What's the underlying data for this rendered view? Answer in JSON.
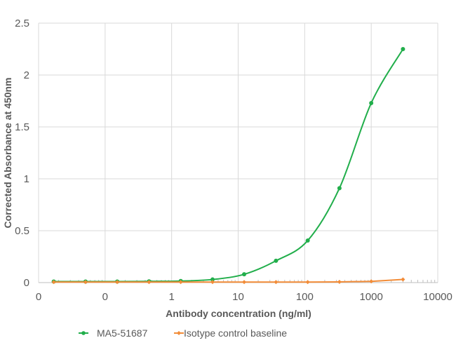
{
  "chart_data": {
    "type": "line",
    "title": "",
    "xlabel": "Antibody concentration (ng/ml)",
    "ylabel": "Corrected Absorbance at 450nm",
    "xscale": "log",
    "xlim": [
      0.01,
      10000
    ],
    "ylim": [
      0,
      2.5
    ],
    "x_tick_labels": [
      "0",
      "0",
      "1",
      "10",
      "100",
      "1000",
      "10000"
    ],
    "y_tick_labels": [
      "0",
      "0.5",
      "1",
      "1.5",
      "2",
      "2.5"
    ],
    "grid": true,
    "legend_position": "bottom",
    "x": [
      0.0169,
      0.0508,
      0.152,
      0.457,
      1.37,
      4.12,
      12.3,
      37.0,
      111,
      333,
      1000,
      3000
    ],
    "series": [
      {
        "name": "MA5-51687",
        "color": "#21AE4B",
        "marker": "circle",
        "smooth": true,
        "values": [
          0.01,
          0.01,
          0.01,
          0.012,
          0.015,
          0.03,
          0.08,
          0.21,
          0.405,
          0.91,
          1.73,
          2.25
        ]
      },
      {
        "name": "Isotype control baseline",
        "color": "#F28C38",
        "marker": "diamond",
        "smooth": false,
        "values": [
          0.005,
          0.005,
          0.005,
          0.005,
          0.005,
          0.005,
          0.005,
          0.005,
          0.005,
          0.007,
          0.012,
          0.03
        ]
      }
    ]
  },
  "legend": {
    "items": [
      {
        "label": "MA5-51687",
        "color": "#21AE4B"
      },
      {
        "label": "Isotype control baseline",
        "color": "#F28C38"
      }
    ]
  }
}
